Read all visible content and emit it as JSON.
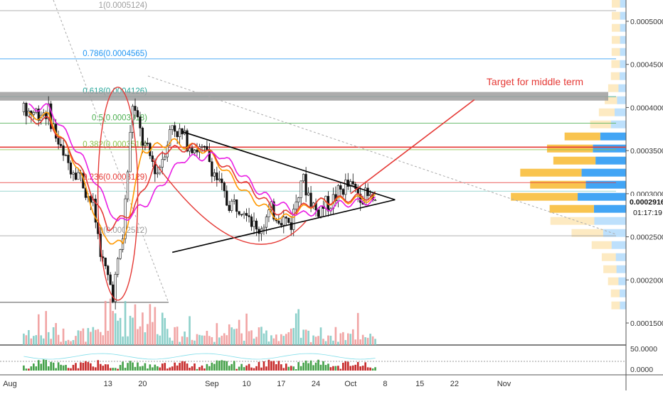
{
  "chart_data": {
    "type": "candlestick",
    "annotation": "Target for middle term",
    "x_axis": {
      "ticks": [
        "Aug",
        "13",
        "20",
        "Sep",
        "10",
        "17",
        "24",
        "Oct",
        "8",
        "15",
        "22",
        "Nov"
      ]
    },
    "price_axis": {
      "ticks": [
        "0.0005000",
        "0.0004500",
        "0.0004000",
        "0.0003500",
        "0.0003000",
        "0.0002500",
        "0.0002000",
        "0.0001500"
      ],
      "range": [
        0.00012,
        0.00054
      ],
      "scale": "linear"
    },
    "indicator_axis": {
      "ticks": [
        "50.0000",
        "0.0000"
      ]
    },
    "current_price": "0.0002916",
    "countdown": "01:17:19",
    "fib_levels": [
      {
        "label": "1(0.0005124)",
        "value": 0.0005124,
        "color": "#9e9e9e"
      },
      {
        "label": "0.786(0.0004565)",
        "value": 0.0004565,
        "color": "#2196f3"
      },
      {
        "label": "0.618(0.0004126)",
        "value": 0.0004126,
        "color": "#26a69a"
      },
      {
        "label": "0.5(0.0003818)",
        "value": 0.0003818,
        "color": "#4caf50"
      },
      {
        "label": "0.382(0.0003510)",
        "value": 0.000351,
        "color": "#8bc34a"
      },
      {
        "label": "0.236(0.0003129)",
        "value": 0.0003129,
        "color": "#e53935"
      },
      {
        "label": "0(0.0002512)",
        "value": 0.0002512,
        "color": "#9e9e9e"
      }
    ],
    "price_series": [
      {
        "date": "Aug-01",
        "value": 0.000395
      },
      {
        "date": "Aug-04",
        "value": 0.00034
      },
      {
        "date": "Aug-07",
        "value": 0.000325
      },
      {
        "date": "Aug-10",
        "value": 0.000285
      },
      {
        "date": "Aug-12",
        "value": 0.00022
      },
      {
        "date": "Aug-14",
        "value": 0.000185
      },
      {
        "date": "Aug-16",
        "value": 0.00025
      },
      {
        "date": "Aug-18",
        "value": 0.000405
      },
      {
        "date": "Aug-20",
        "value": 0.00036
      },
      {
        "date": "Aug-23",
        "value": 0.000325
      },
      {
        "date": "Aug-26",
        "value": 0.00038
      },
      {
        "date": "Aug-29",
        "value": 0.00036
      },
      {
        "date": "Sep-02",
        "value": 0.000345
      },
      {
        "date": "Sep-06",
        "value": 0.00029
      },
      {
        "date": "Sep-10",
        "value": 0.000285
      },
      {
        "date": "Sep-12",
        "value": 0.000255
      },
      {
        "date": "Sep-15",
        "value": 0.00028
      },
      {
        "date": "Sep-19",
        "value": 0.000265
      },
      {
        "date": "Sep-21",
        "value": 0.00032
      },
      {
        "date": "Sep-24",
        "value": 0.00028
      },
      {
        "date": "Sep-27",
        "value": 0.00029
      },
      {
        "date": "Sep-30",
        "value": 0.00031
      },
      {
        "date": "Oct-03",
        "value": 0.0003
      },
      {
        "date": "Oct-06",
        "value": 0.00029
      }
    ],
    "ma_orange": [
      {
        "date": "Aug-01",
        "value": 0.00039
      },
      {
        "date": "Aug-07",
        "value": 0.00033
      },
      {
        "date": "Aug-12",
        "value": 0.00025
      },
      {
        "date": "Aug-16",
        "value": 0.00024
      },
      {
        "date": "Aug-20",
        "value": 0.00035
      },
      {
        "date": "Aug-26",
        "value": 0.00036
      },
      {
        "date": "Sep-02",
        "value": 0.00035
      },
      {
        "date": "Sep-10",
        "value": 0.0003
      },
      {
        "date": "Sep-17",
        "value": 0.00027
      },
      {
        "date": "Sep-24",
        "value": 0.00029
      },
      {
        "date": "Oct-06",
        "value": 0.000295
      }
    ],
    "ma_red": [
      {
        "date": "Aug-01",
        "value": 0.000385
      },
      {
        "date": "Aug-07",
        "value": 0.000335
      },
      {
        "date": "Aug-13",
        "value": 0.00026
      },
      {
        "date": "Aug-18",
        "value": 0.00028
      },
      {
        "date": "Aug-24",
        "value": 0.00035
      },
      {
        "date": "Sep-01",
        "value": 0.000355
      },
      {
        "date": "Sep-10",
        "value": 0.00031
      },
      {
        "date": "Sep-17",
        "value": 0.000275
      },
      {
        "date": "Sep-24",
        "value": 0.00029
      },
      {
        "date": "Oct-06",
        "value": 0.000298
      }
    ],
    "ma_magenta": [
      {
        "date": "Aug-01",
        "value": 0.0004
      },
      {
        "date": "Aug-08",
        "value": 0.00034
      },
      {
        "date": "Aug-15",
        "value": 0.000265
      },
      {
        "date": "Aug-21",
        "value": 0.00029
      },
      {
        "date": "Aug-28",
        "value": 0.00034
      },
      {
        "date": "Sep-05",
        "value": 0.000345
      },
      {
        "date": "Sep-13",
        "value": 0.0003
      },
      {
        "date": "Sep-21",
        "value": 0.000275
      },
      {
        "date": "Sep-29",
        "value": 0.000288
      },
      {
        "date": "Oct-06",
        "value": 0.000292
      }
    ],
    "triangle": {
      "upper": [
        {
          "date": "Aug-28",
          "value": 0.000372
        },
        {
          "date": "Oct-10",
          "value": 0.000293
        }
      ],
      "lower": [
        {
          "date": "Aug-26",
          "value": 0.000232
        },
        {
          "date": "Oct-10",
          "value": 0.000293
        }
      ]
    },
    "target_arrow": [
      {
        "date": "Oct-01",
        "value": 0.0003
      },
      {
        "date": "Oct-26",
        "value": 0.000409
      }
    ],
    "support_level": 0.000174,
    "resistance_zone": [
      0.000408,
      0.000418
    ],
    "horizontal_red": 0.000354,
    "colors": {
      "up": "#26a69a",
      "down": "#ef5350",
      "ma_orange": "#ff9800",
      "ma_red": "#e53935",
      "ma_magenta": "#e91ee3",
      "annotation": "#e53935",
      "vp_orange": "#f9c44f",
      "vp_blue": "#42a5f5"
    }
  }
}
